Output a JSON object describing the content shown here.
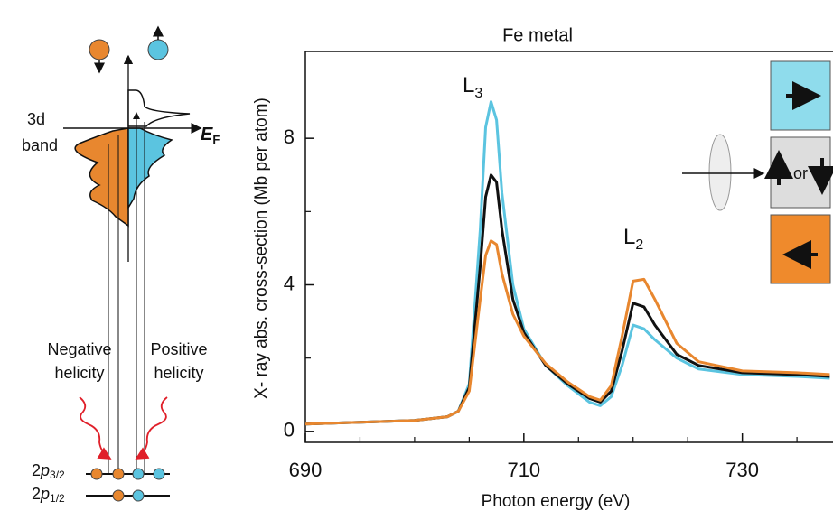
{
  "chart_data": {
    "type": "line",
    "title": "Fe metal",
    "xlabel": "Photon energy (eV)",
    "ylabel": "X- ray abs. cross-section (Mb per atom)",
    "x": [
      690,
      695,
      700,
      703,
      704,
      705,
      706,
      706.5,
      707,
      707.5,
      708,
      709,
      710,
      712,
      714,
      716,
      717,
      718,
      719,
      720,
      721,
      722,
      724,
      726,
      730,
      735,
      738
    ],
    "series": [
      {
        "color": "#5bc4e0",
        "values": [
          0.2,
          0.25,
          0.3,
          0.4,
          0.55,
          1.3,
          5.5,
          8.3,
          9.0,
          8.5,
          6.5,
          4.0,
          2.8,
          1.8,
          1.25,
          0.8,
          0.7,
          0.95,
          1.8,
          2.9,
          2.8,
          2.5,
          2.0,
          1.7,
          1.55,
          1.5,
          1.45
        ]
      },
      {
        "color": "#111111",
        "values": [
          0.2,
          0.25,
          0.3,
          0.4,
          0.55,
          1.2,
          4.5,
          6.4,
          7.0,
          6.8,
          5.5,
          3.6,
          2.7,
          1.8,
          1.3,
          0.9,
          0.8,
          1.1,
          2.2,
          3.5,
          3.4,
          2.9,
          2.1,
          1.8,
          1.6,
          1.55,
          1.5
        ]
      },
      {
        "color": "#e8872f",
        "values": [
          0.2,
          0.25,
          0.3,
          0.4,
          0.55,
          1.1,
          3.6,
          4.8,
          5.2,
          5.1,
          4.3,
          3.2,
          2.6,
          1.85,
          1.35,
          0.95,
          0.85,
          1.25,
          2.6,
          4.1,
          4.15,
          3.6,
          2.4,
          1.9,
          1.65,
          1.6,
          1.55
        ]
      }
    ],
    "xlim": [
      690,
      738.3
    ],
    "ylim": [
      -0.3,
      10.37
    ],
    "xticks": [
      690,
      710,
      730
    ],
    "xminorticks": [
      695,
      700,
      705,
      715,
      720,
      725,
      735
    ],
    "yticks": [
      0,
      4,
      8
    ],
    "yminorticks": [
      2,
      6
    ],
    "annotations": [
      {
        "text": "L",
        "sub": "3"
      },
      {
        "text": "L",
        "sub": "2"
      }
    ]
  },
  "diagram": {
    "band_top": "3d",
    "band": "band",
    "fermi": {
      "text": "E",
      "sub": "F"
    },
    "negative": [
      "Negative",
      "helicity"
    ],
    "positive": [
      "Positive",
      "helicity"
    ],
    "levels": [
      {
        "text": "2",
        "italic": "p",
        "sub": "3/2"
      },
      {
        "text": "2",
        "italic": "p",
        "sub": "1/2"
      }
    ],
    "or": "or"
  }
}
